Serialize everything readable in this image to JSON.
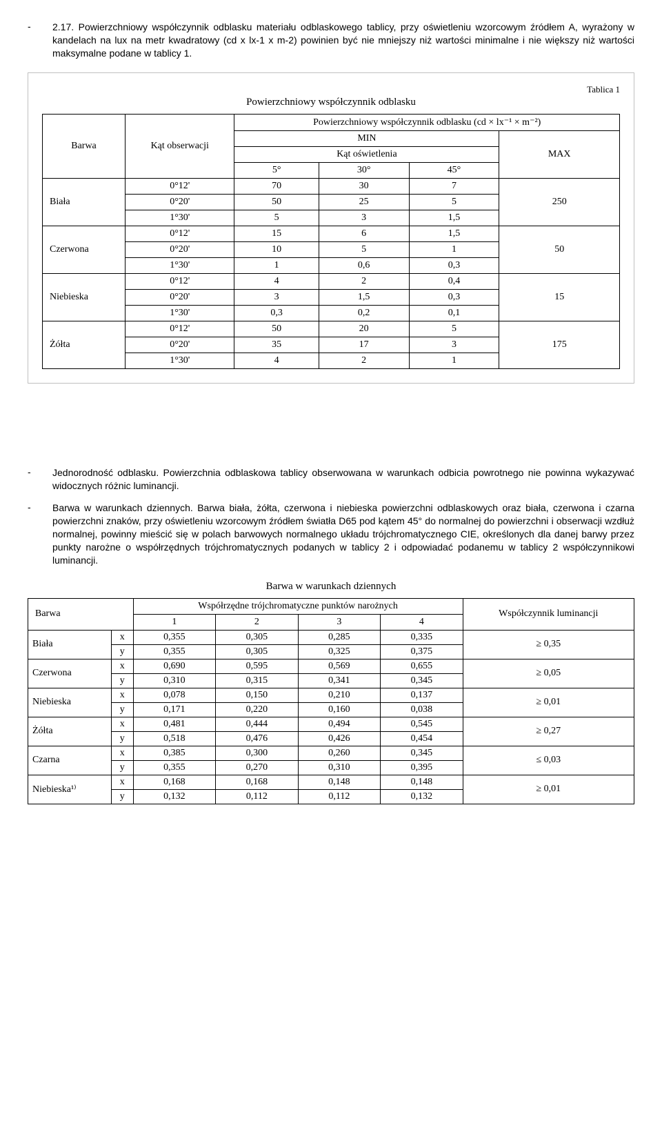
{
  "para1": {
    "dash": "-",
    "num": "2.17.",
    "text": "Powierzchniowy współczynnik odblasku materiału odblaskowego tablicy, przy oświetleniu wzorcowym źródłem A, wyrażony w kandelach na lux na metr kwadratowy (cd x lx-1 x m-2) powinien być nie mniejszy niż wartości minimalne i nie większy niż wartości maksymalne podane w tablicy 1."
  },
  "table1": {
    "caption": "Tablica 1",
    "title": "Powierzchniowy współczynnik odblasku",
    "head": {
      "h1": "Barwa",
      "h2": "Kąt obserwacji",
      "h3": "Powierzchniowy współczynnik odblasku (cd × lx⁻¹ × m⁻²)",
      "h4": "MIN",
      "h5": "MAX",
      "h6": "Kąt oświetlenia",
      "a1": "5°",
      "a2": "30°",
      "a3": "45°"
    },
    "rows": [
      {
        "barwa": "Biała",
        "obs": "0°12'",
        "v": [
          "70",
          "30",
          "7"
        ],
        "max": "250"
      },
      {
        "barwa": "",
        "obs": "0°20'",
        "v": [
          "50",
          "25",
          "5"
        ],
        "max": ""
      },
      {
        "barwa": "",
        "obs": "1°30'",
        "v": [
          "5",
          "3",
          "1,5"
        ],
        "max": ""
      },
      {
        "barwa": "Czerwona",
        "obs": "0°12'",
        "v": [
          "15",
          "6",
          "1,5"
        ],
        "max": "50"
      },
      {
        "barwa": "",
        "obs": "0°20'",
        "v": [
          "10",
          "5",
          "1"
        ],
        "max": ""
      },
      {
        "barwa": "",
        "obs": "1°30'",
        "v": [
          "1",
          "0,6",
          "0,3"
        ],
        "max": ""
      },
      {
        "barwa": "Niebieska",
        "obs": "0°12'",
        "v": [
          "4",
          "2",
          "0,4"
        ],
        "max": "15"
      },
      {
        "barwa": "",
        "obs": "0°20'",
        "v": [
          "3",
          "1,5",
          "0,3"
        ],
        "max": ""
      },
      {
        "barwa": "",
        "obs": "1°30'",
        "v": [
          "0,3",
          "0,2",
          "0,1"
        ],
        "max": ""
      },
      {
        "barwa": "Żółta",
        "obs": "0°12'",
        "v": [
          "50",
          "20",
          "5"
        ],
        "max": "175"
      },
      {
        "barwa": "",
        "obs": "0°20'",
        "v": [
          "35",
          "17",
          "3"
        ],
        "max": ""
      },
      {
        "barwa": "",
        "obs": "1°30'",
        "v": [
          "4",
          "2",
          "1"
        ],
        "max": ""
      }
    ]
  },
  "bullets": [
    {
      "dash": "-",
      "text": "Jednorodność odblasku. Powierzchnia odblaskowa tablicy obserwowana w warunkach odbicia powrotnego nie powinna wykazywać widocznych różnic luminancji."
    },
    {
      "dash": "-",
      "text": "Barwa w warunkach dziennych. Barwa biała, żółta, czerwona i niebieska powierzchni odblaskowych oraz biała, czerwona i czarna powierzchni znaków, przy oświetleniu wzorcowym źródłem światła D65 pod kątem 45° do normalnej do powierzchni i obserwacji wzdłuż normalnej, powinny mieścić się w polach barwowych normalnego układu trójchromatycznego CIE, określonych dla danej barwy przez punkty narożne o współrzędnych trójchromatycznych podanych w tablicy 2 i odpowiadać podanemu w tablicy 2 współczynnikowi luminancji."
    }
  ],
  "table2": {
    "title": "Barwa w warunkach dziennych",
    "head": {
      "h1": "Barwa",
      "h2": "Współrzędne trójchromatyczne punktów narożnych",
      "h3": "Współczynnik luminancji",
      "c1": "1",
      "c2": "2",
      "c3": "3",
      "c4": "4"
    },
    "rows": [
      {
        "barwa": "Biała",
        "axis": "x",
        "v": [
          "0,355",
          "0,305",
          "0,285",
          "0,335"
        ],
        "lum": "≥ 0,35"
      },
      {
        "barwa": "",
        "axis": "y",
        "v": [
          "0,355",
          "0,305",
          "0,325",
          "0,375"
        ],
        "lum": ""
      },
      {
        "barwa": "Czerwona",
        "axis": "x",
        "v": [
          "0,690",
          "0,595",
          "0,569",
          "0,655"
        ],
        "lum": "≥ 0,05"
      },
      {
        "barwa": "",
        "axis": "y",
        "v": [
          "0,310",
          "0,315",
          "0,341",
          "0,345"
        ],
        "lum": ""
      },
      {
        "barwa": "Niebieska",
        "axis": "x",
        "v": [
          "0,078",
          "0,150",
          "0,210",
          "0,137"
        ],
        "lum": "≥ 0,01"
      },
      {
        "barwa": "",
        "axis": "y",
        "v": [
          "0,171",
          "0,220",
          "0,160",
          "0,038"
        ],
        "lum": ""
      },
      {
        "barwa": "Żółta",
        "axis": "x",
        "v": [
          "0,481",
          "0,444",
          "0,494",
          "0,545"
        ],
        "lum": "≥ 0,27"
      },
      {
        "barwa": "",
        "axis": "y",
        "v": [
          "0,518",
          "0,476",
          "0,426",
          "0,454"
        ],
        "lum": ""
      },
      {
        "barwa": "Czarna",
        "axis": "x",
        "v": [
          "0,385",
          "0,300",
          "0,260",
          "0,345"
        ],
        "lum": "≤ 0,03"
      },
      {
        "barwa": "",
        "axis": "y",
        "v": [
          "0,355",
          "0,270",
          "0,310",
          "0,395"
        ],
        "lum": ""
      },
      {
        "barwa": "Niebieska¹⁾",
        "axis": "x",
        "v": [
          "0,168",
          "0,168",
          "0,148",
          "0,148"
        ],
        "lum": "≥ 0,01"
      },
      {
        "barwa": "",
        "axis": "y",
        "v": [
          "0,132",
          "0,112",
          "0,112",
          "0,132"
        ],
        "lum": ""
      }
    ]
  }
}
